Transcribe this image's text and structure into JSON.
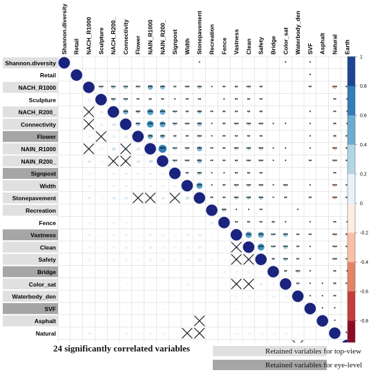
{
  "chart_data": {
    "type": "heatmap",
    "variables": [
      "Shannon.diversity",
      "Retail",
      "NACH_R1000",
      "Sculpture",
      "NACH_R200_",
      "Connectivity",
      "Flower",
      "NAIN_R1000",
      "NAIN_R200_",
      "Signpost",
      "Width",
      "Stonepavement",
      "Recreation",
      "Fence",
      "Vastness",
      "Clean",
      "Safety",
      "Bridge",
      "Color_sat",
      "Waterbody_den",
      "SVF",
      "Asphalt",
      "Natural",
      "Earth"
    ],
    "row_highlight": [
      "top",
      "none",
      "top",
      "none",
      "top",
      "top",
      "eye",
      "top",
      "top",
      "eye",
      "top",
      "top",
      "top",
      "none",
      "eye",
      "top",
      "top",
      "eye",
      "top",
      "top",
      "eye",
      "top",
      "none",
      "none"
    ],
    "colorbar_ticks": [
      "1",
      "0.8",
      "0.6",
      "0.4",
      "0.2",
      "0",
      "-0.2",
      "-0.4",
      "-0.6",
      "-0.8",
      "-1"
    ],
    "colors": {
      "ramp": [
        "#67001f",
        "#b2182b",
        "#d6604d",
        "#f4a582",
        "#fddbc7",
        "#ffffff",
        "#d1e5f0",
        "#92c5de",
        "#4393c3",
        "#2166ac",
        "#1a237e"
      ],
      "highlight_top": "#e0e0e0",
      "highlight_eye": "#a6a6a6"
    },
    "correlation_rows": [
      [
        1.0
      ],
      [
        -0.01,
        1.0
      ],
      [
        0.02,
        0.03,
        1.0
      ],
      [
        0.01,
        0.02,
        0.25,
        1.0
      ],
      [
        0.03,
        0.04,
        0.3,
        0.28,
        1.0
      ],
      [
        0.02,
        0.05,
        0.32,
        0.26,
        0.45,
        1.0
      ],
      [
        0.01,
        0.03,
        0.23,
        0.12,
        0.3,
        0.35,
        1.0
      ],
      [
        0.02,
        0.04,
        0.45,
        0.2,
        0.55,
        0.6,
        0.45,
        1.0
      ],
      [
        0.01,
        0.03,
        0.4,
        0.18,
        0.5,
        0.52,
        0.4,
        0.7,
        1.0
      ],
      [
        -0.05,
        0.02,
        0.15,
        0.1,
        0.25,
        0.28,
        0.2,
        0.26,
        0.24,
        1.0
      ],
      [
        0.01,
        0.03,
        0.22,
        0.11,
        0.2,
        0.23,
        0.15,
        0.25,
        0.22,
        0.2,
        1.0
      ],
      [
        -0.06,
        0.02,
        0.3,
        0.15,
        0.35,
        0.38,
        0.25,
        0.45,
        0.4,
        0.3,
        0.55,
        1.0
      ],
      [
        0.01,
        -0.01,
        0.1,
        0.05,
        0.12,
        0.1,
        0.08,
        0.12,
        0.11,
        0.08,
        0.1,
        0.12,
        1.0
      ],
      [
        -0.02,
        -0.01,
        0.15,
        0.08,
        0.18,
        0.15,
        0.12,
        0.12,
        0.13,
        0.09,
        0.12,
        0.15,
        0.3,
        1.0
      ],
      [
        -0.01,
        0.01,
        0.2,
        0.12,
        0.18,
        0.22,
        0.12,
        0.27,
        0.2,
        0.15,
        0.25,
        0.28,
        0.1,
        0.12,
        1.0
      ],
      [
        0.01,
        0.02,
        0.22,
        0.15,
        0.2,
        0.25,
        0.15,
        0.3,
        0.22,
        0.18,
        0.25,
        0.3,
        0.1,
        0.13,
        0.55,
        1.0
      ],
      [
        0.02,
        -0.03,
        0.18,
        0.14,
        0.19,
        0.22,
        0.15,
        0.28,
        0.22,
        0.17,
        0.24,
        0.32,
        0.12,
        0.15,
        0.52,
        0.6,
        1.0
      ],
      [
        -0.01,
        0.01,
        0.05,
        0.03,
        0.05,
        0.06,
        0.04,
        0.08,
        0.07,
        0.03,
        0.06,
        0.09,
        0.03,
        0.2,
        0.23,
        0.22,
        0.2,
        1.0
      ],
      [
        -0.07,
        0.01,
        0.02,
        0.01,
        0.05,
        0.08,
        0.03,
        0.1,
        0.07,
        0.05,
        0.25,
        0.12,
        0.04,
        0.06,
        0.38,
        0.35,
        0.3,
        0.18,
        1.0
      ],
      [
        0.01,
        -0.04,
        0.02,
        -0.03,
        0.01,
        0.02,
        0.03,
        0.02,
        0.01,
        0.04,
        0.05,
        0.03,
        0.06,
        0.04,
        0.18,
        0.15,
        0.12,
        0.25,
        0.2,
        1.0
      ],
      [
        0.06,
        -0.08,
        -0.12,
        -0.05,
        -0.1,
        -0.06,
        -0.08,
        -0.09,
        -0.12,
        -0.05,
        -0.08,
        -0.12,
        0.05,
        0.06,
        0.12,
        0.1,
        0.08,
        0.1,
        0.08,
        0.08,
        1.0
      ],
      [
        -0.01,
        0.02,
        0.04,
        -0.02,
        -0.03,
        -0.02,
        0.01,
        -0.04,
        -0.02,
        -0.02,
        -0.01,
        -0.05,
        0.03,
        0.02,
        -0.03,
        -0.04,
        -0.03,
        -0.05,
        -0.06,
        -0.08,
        0.06,
        1.0
      ],
      [
        -0.03,
        -0.05,
        -0.29,
        -0.11,
        -0.12,
        -0.18,
        -0.2,
        -0.27,
        -0.22,
        -0.11,
        -0.25,
        -0.26,
        -0.05,
        -0.12,
        -0.24,
        -0.21,
        -0.22,
        -0.18,
        -0.18,
        -0.12,
        -0.08,
        -0.09,
        1.0
      ],
      [
        -0.01,
        0.02,
        -0.16,
        -0.08,
        -0.07,
        -0.1,
        -0.12,
        -0.15,
        -0.13,
        -0.05,
        -0.12,
        -0.15,
        -0.05,
        -0.1,
        -0.15,
        -0.12,
        -0.13,
        -0.1,
        -0.11,
        -0.05,
        0.05,
        0.03,
        0.18,
        1.0
      ]
    ],
    "crossed_cells": [
      [
        4,
        2
      ],
      [
        5,
        2
      ],
      [
        6,
        3
      ],
      [
        7,
        2
      ],
      [
        7,
        5
      ],
      [
        8,
        4
      ],
      [
        8,
        5
      ],
      [
        11,
        6
      ],
      [
        11,
        7
      ],
      [
        11,
        9
      ],
      [
        15,
        14
      ],
      [
        16,
        14
      ],
      [
        16,
        15
      ],
      [
        18,
        14
      ],
      [
        18,
        15
      ],
      [
        21,
        11
      ],
      [
        22,
        10
      ],
      [
        22,
        11
      ],
      [
        23,
        19
      ]
    ]
  },
  "footer": {
    "title": "24 significantly correlated variables",
    "legend": [
      {
        "label": "Retained variables for top-view"
      },
      {
        "label": "Retained variables for eye-level"
      }
    ]
  }
}
